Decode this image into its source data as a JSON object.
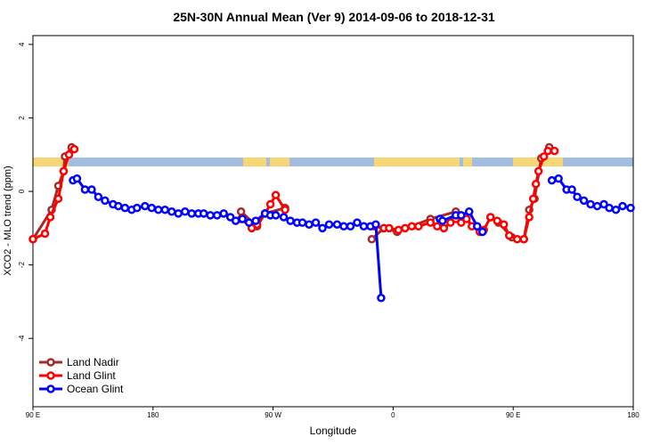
{
  "chart_data": {
    "type": "line",
    "title": "25N-30N Annual Mean (Ver 9)   2014-09-06 to 2018-12-31",
    "x_label": "Longitude",
    "y_label": "XCO2 - MLO trend (ppm)",
    "xlim": [
      90,
      540
    ],
    "xticks": [
      {
        "value": 90,
        "label": "90 E"
      },
      180,
      {
        "value": 270,
        "label": "90 W"
      },
      {
        "value": 360,
        "label": "0"
      },
      {
        "value": 450,
        "label": "90 E"
      },
      {
        "value": 540,
        "label": "180"
      }
    ],
    "ylim": [
      -5.86,
      4.24
    ],
    "yticks": [
      -4,
      -2,
      0,
      2,
      4
    ],
    "legend": "bottom-left",
    "series": [
      {
        "name": "Land Nadir",
        "color": "#a52a2a",
        "x": [
          90,
          104,
          109,
          113,
          114,
          119,
          null,
          246,
          258,
          264,
          279,
          null,
          344,
          353,
          363,
          388,
          407,
          426,
          null,
          433,
          439,
          449,
          458,
          462,
          466,
          471,
          477
        ],
        "values": [
          -1.3,
          -0.5,
          0.15,
          0.55,
          0.95,
          1.2,
          null,
          -0.55,
          -0.95,
          -0.6,
          -0.45,
          null,
          -1.3,
          -1.0,
          -1.1,
          -0.75,
          -0.55,
          -1.1,
          null,
          -0.7,
          -0.85,
          -1.25,
          -1.3,
          -0.5,
          -0.2,
          0.9,
          1.2
        ]
      },
      {
        "name": "Land Glint",
        "color": "#ff0000",
        "x": [
          90,
          99,
          103,
          109,
          113,
          117,
          121,
          null,
          246,
          254,
          258,
          264,
          268,
          272,
          279,
          null,
          346,
          353,
          357,
          364,
          369,
          374,
          379,
          388,
          393,
          398,
          403,
          407,
          411,
          415,
          419,
          425,
          428,
          433,
          438,
          443,
          447,
          453,
          458,
          462,
          465,
          467,
          469,
          473,
          476,
          481
        ],
        "values": [
          -1.3,
          -1.15,
          -0.7,
          -0.2,
          0.55,
          1.0,
          1.15,
          null,
          -0.75,
          -1.0,
          -0.9,
          -0.6,
          -0.35,
          -0.1,
          -0.5,
          null,
          -0.95,
          -1.0,
          -1.0,
          -1.05,
          -1.0,
          -0.95,
          -0.95,
          -0.85,
          -0.95,
          -1.0,
          -0.85,
          -0.75,
          -0.85,
          -0.75,
          -0.95,
          -1.1,
          -1.05,
          -0.7,
          -0.8,
          -0.9,
          -1.2,
          -1.3,
          -1.3,
          -0.7,
          -0.2,
          0.2,
          0.55,
          0.95,
          1.1,
          1.1
        ]
      },
      {
        "name": "Ocean Glint",
        "color": "#0000ff",
        "x": [
          120,
          123,
          129,
          134,
          139,
          144,
          150,
          154,
          159,
          164,
          168,
          174,
          179,
          184,
          189,
          194,
          199,
          204,
          209,
          214,
          218,
          223,
          228,
          233,
          238,
          242,
          247,
          252,
          257,
          264,
          268,
          272,
          278,
          283,
          288,
          292,
          297,
          302,
          307,
          312,
          318,
          323,
          328,
          333,
          338,
          343,
          347,
          351,
          null,
          395,
          397,
          407,
          411,
          417,
          423,
          427,
          null,
          479,
          484,
          490,
          494,
          498,
          503,
          508,
          513,
          518,
          522,
          527,
          532,
          538
        ],
        "values": [
          0.3,
          0.35,
          0.05,
          0.05,
          -0.15,
          -0.25,
          -0.35,
          -0.4,
          -0.45,
          -0.5,
          -0.45,
          -0.4,
          -0.45,
          -0.5,
          -0.5,
          -0.55,
          -0.6,
          -0.55,
          -0.6,
          -0.6,
          -0.6,
          -0.65,
          -0.65,
          -0.6,
          -0.7,
          -0.8,
          -0.75,
          -0.85,
          -0.8,
          -0.6,
          -0.65,
          -0.65,
          -0.7,
          -0.8,
          -0.85,
          -0.85,
          -0.9,
          -0.85,
          -1.0,
          -0.9,
          -0.9,
          -0.95,
          -0.95,
          -0.85,
          -0.95,
          -0.95,
          -0.9,
          -2.9,
          null,
          -0.75,
          -0.8,
          -0.65,
          -0.65,
          -0.55,
          -0.95,
          -1.1,
          null,
          0.3,
          0.35,
          0.05,
          0.05,
          -0.15,
          -0.25,
          -0.35,
          -0.4,
          -0.35,
          -0.45,
          -0.5,
          -0.4,
          -0.45
        ]
      }
    ]
  }
}
